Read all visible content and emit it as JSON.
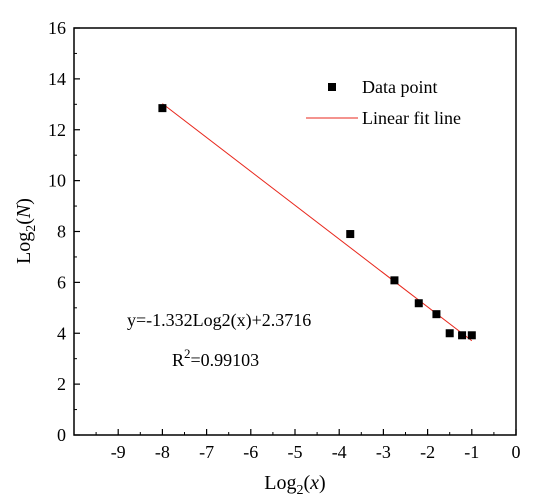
{
  "chart_data": {
    "type": "scatter",
    "title": "",
    "xlabel": {
      "base": "Log",
      "sub": "2",
      "arg": "x"
    },
    "ylabel": {
      "base": "Log",
      "sub": "2",
      "arg": "N"
    },
    "xlim": [
      -10,
      0
    ],
    "ylim": [
      0,
      16
    ],
    "x_ticks": [
      -9,
      -8,
      -7,
      -6,
      -5,
      -4,
      -3,
      -2,
      -1,
      0
    ],
    "y_ticks": [
      0,
      2,
      4,
      6,
      8,
      10,
      12,
      14,
      16
    ],
    "grid": false,
    "legend_position": "top-right",
    "series": [
      {
        "name": "Data point",
        "kind": "scatter",
        "marker": "square",
        "color": "#000000",
        "points": [
          {
            "x": -8.0,
            "y": 12.85
          },
          {
            "x": -3.75,
            "y": 7.9
          },
          {
            "x": -2.75,
            "y": 6.08
          },
          {
            "x": -2.2,
            "y": 5.18
          },
          {
            "x": -1.8,
            "y": 4.75
          },
          {
            "x": -1.5,
            "y": 4.0
          },
          {
            "x": -1.22,
            "y": 3.92
          },
          {
            "x": -1.0,
            "y": 3.92
          }
        ]
      },
      {
        "name": "Linear fit line",
        "kind": "line",
        "color": "#e8271c",
        "slope": -1.332,
        "intercept": 2.3716,
        "x_range": [
          -8.0,
          -1.0
        ]
      }
    ],
    "annotations": {
      "equation": "y=-1.332Log2(x)+2.3716",
      "r2_label": "R",
      "r2_sup": "2",
      "r2_value": "=0.99103"
    }
  }
}
